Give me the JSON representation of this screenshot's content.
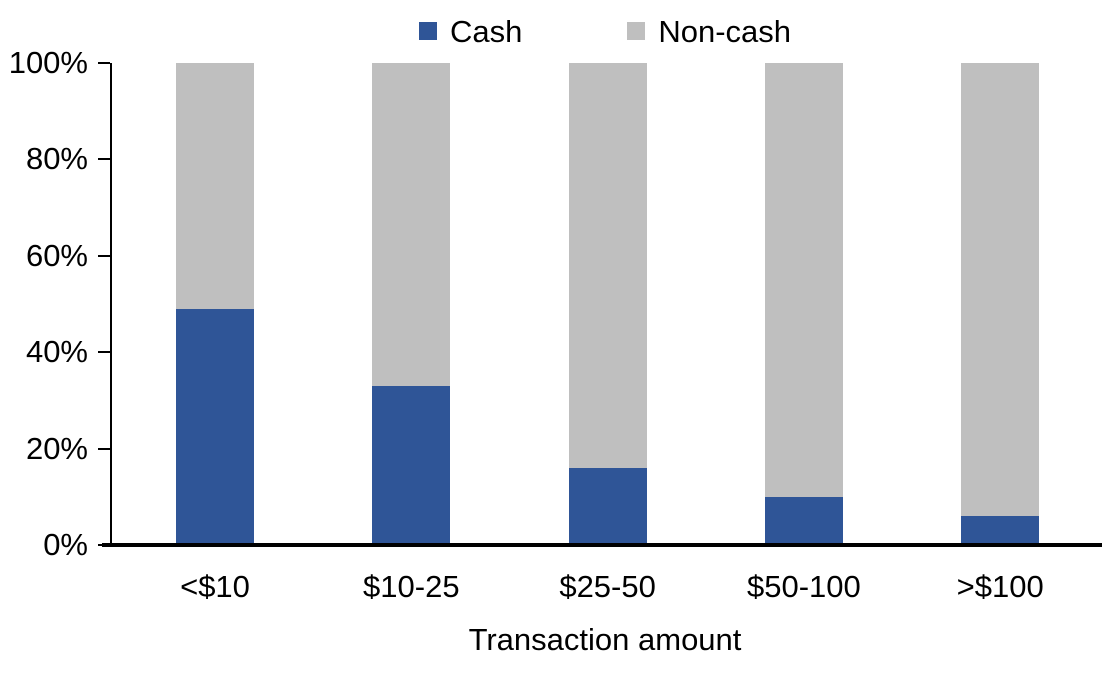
{
  "chart_data": {
    "type": "bar",
    "variant": "stacked-100",
    "title": "",
    "xlabel": "Transaction amount",
    "ylabel": "",
    "categories": [
      "<$10",
      "$10-25",
      "$25-50",
      "$50-100",
      ">$100"
    ],
    "series": [
      {
        "name": "Cash",
        "color": "#2F5597",
        "values": [
          49,
          33,
          16,
          10,
          6
        ]
      },
      {
        "name": "Non-cash",
        "color": "#BFBFBF",
        "values": [
          51,
          67,
          84,
          90,
          94
        ]
      }
    ],
    "y_ticks": [
      "0%",
      "20%",
      "40%",
      "60%",
      "80%",
      "100%"
    ],
    "ylim": [
      0,
      100
    ],
    "legend_position": "top",
    "grid": false,
    "colors": {
      "axis": "#000000",
      "background": "#ffffff"
    }
  }
}
